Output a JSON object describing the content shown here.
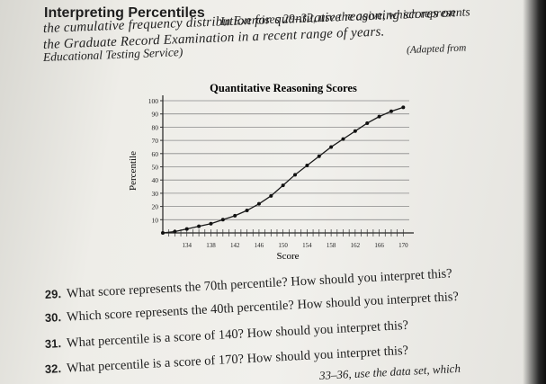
{
  "section": {
    "title": "Interpreting Percentiles",
    "intro_lines": [
      "In Exercises 29–32, use the ogive, which represents",
      "the cumulative frequency distribution for quantitative reasoning scores on",
      "the Graduate Record Examination in a recent range of years.",
      "(Adapted from",
      "Educational Testing Service)"
    ]
  },
  "chart_data": {
    "type": "line",
    "title": "Quantitative Reasoning Scores",
    "xlabel": "Score",
    "ylabel": "Percentile",
    "x_ticks": [
      "134",
      "138",
      "142",
      "146",
      "150",
      "154",
      "158",
      "162",
      "166",
      "170"
    ],
    "y_ticks": [
      "10",
      "20",
      "30",
      "40",
      "50",
      "60",
      "70",
      "80",
      "90",
      "100"
    ],
    "xlim": [
      130,
      171
    ],
    "ylim": [
      0,
      100
    ],
    "grid": "horizontal",
    "series": [
      {
        "x": [
          130,
          132,
          134,
          136,
          138,
          140,
          142,
          144,
          146,
          148,
          150,
          152,
          154,
          156,
          158,
          160,
          162,
          164,
          166,
          168,
          170
        ],
        "y": [
          0,
          1,
          3,
          5,
          7,
          10,
          13,
          17,
          22,
          28,
          36,
          44,
          51,
          58,
          65,
          71,
          77,
          83,
          88,
          92,
          95
        ]
      }
    ]
  },
  "questions": [
    {
      "number": "29.",
      "text": "What score represents the 70th percentile? How should you interpret this?"
    },
    {
      "number": "30.",
      "text": "Which score represents the 40th percentile? How should you interpret this?"
    },
    {
      "number": "31.",
      "text": "What percentile is a score of 140? How should you interpret this?"
    },
    {
      "number": "32.",
      "text": "What percentile is a score of 170? How should you interpret this?"
    }
  ],
  "next_section_fragment": "33–36, use the data set, which"
}
